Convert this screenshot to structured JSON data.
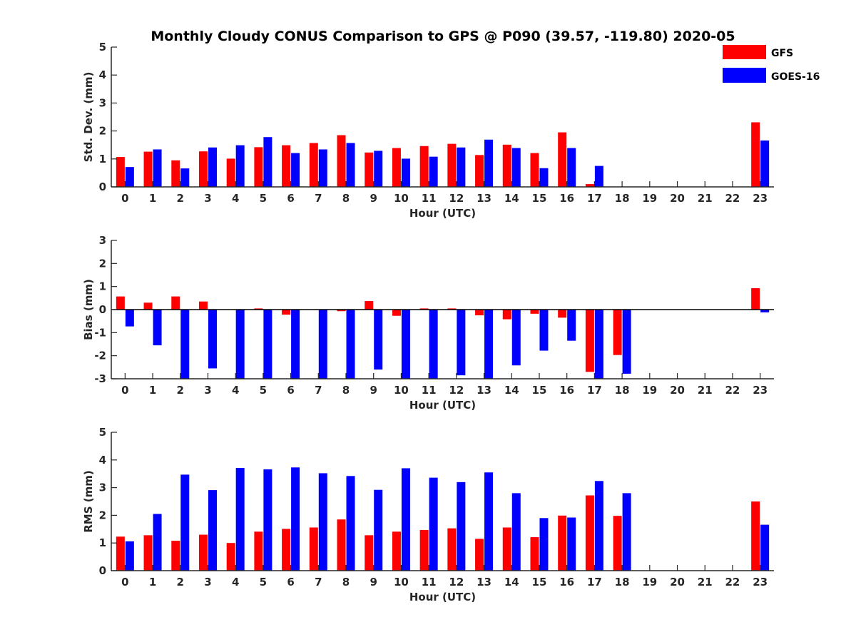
{
  "title": "Monthly Cloudy CONUS Comparison to GPS @ P090 (39.57, -119.80) 2020-05",
  "colors": {
    "gfs": "#ff0000",
    "goes": "#0000ff",
    "axis": "#262626"
  },
  "legend": [
    {
      "name": "GFS",
      "color": "#ff0000"
    },
    {
      "name": "GOES-16",
      "color": "#0000ff"
    }
  ],
  "chart_data": [
    {
      "type": "bar",
      "title": "Monthly Cloudy CONUS Comparison to GPS @ P090 (39.57, -119.80) 2020-05",
      "xlabel": "Hour (UTC)",
      "ylabel": "Std. Dev. (mm)",
      "ylim": [
        0,
        5
      ],
      "yticks": [
        0,
        1,
        2,
        3,
        4,
        5
      ],
      "categories": [
        "0",
        "1",
        "2",
        "3",
        "4",
        "5",
        "6",
        "7",
        "8",
        "9",
        "10",
        "11",
        "12",
        "13",
        "14",
        "15",
        "16",
        "17",
        "18",
        "19",
        "20",
        "21",
        "22",
        "23"
      ],
      "series": [
        {
          "name": "GFS",
          "values": [
            1.07,
            1.26,
            0.95,
            1.27,
            1.01,
            1.42,
            1.49,
            1.57,
            1.85,
            1.23,
            1.39,
            1.46,
            1.54,
            1.14,
            1.51,
            1.21,
            1.95,
            0.1,
            null,
            null,
            null,
            null,
            null,
            2.31
          ]
        },
        {
          "name": "GOES-16",
          "values": [
            0.71,
            1.34,
            0.66,
            1.41,
            1.49,
            1.78,
            1.21,
            1.34,
            1.57,
            1.29,
            1.01,
            1.08,
            1.41,
            1.69,
            1.39,
            0.67,
            1.39,
            0.75,
            null,
            null,
            null,
            null,
            null,
            1.66
          ]
        }
      ]
    },
    {
      "type": "bar",
      "xlabel": "Hour (UTC)",
      "ylabel": "Bias (mm)",
      "ylim": [
        -3,
        3
      ],
      "yticks": [
        -3,
        -2,
        -1,
        0,
        1,
        2,
        3
      ],
      "categories": [
        "0",
        "1",
        "2",
        "3",
        "4",
        "5",
        "6",
        "7",
        "8",
        "9",
        "10",
        "11",
        "12",
        "13",
        "14",
        "15",
        "16",
        "17",
        "18",
        "19",
        "20",
        "21",
        "22",
        "23"
      ],
      "series": [
        {
          "name": "GFS",
          "values": [
            0.57,
            0.3,
            0.57,
            0.35,
            0.0,
            0.05,
            -0.22,
            0.0,
            -0.07,
            0.37,
            -0.27,
            0.05,
            0.05,
            -0.25,
            -0.42,
            -0.18,
            -0.35,
            -2.7,
            -1.97,
            null,
            null,
            null,
            null,
            0.93
          ]
        },
        {
          "name": "GOES-16",
          "values": [
            -0.73,
            -1.55,
            -3.0,
            -2.55,
            -3.0,
            -3.0,
            -3.0,
            -3.0,
            -3.0,
            -2.6,
            -3.0,
            -3.0,
            -2.85,
            -3.0,
            -2.42,
            -1.78,
            -1.35,
            -3.0,
            -2.78,
            null,
            null,
            null,
            null,
            -0.12
          ]
        }
      ]
    },
    {
      "type": "bar",
      "xlabel": "Hour (UTC)",
      "ylabel": "RMS (mm)",
      "ylim": [
        0,
        5
      ],
      "yticks": [
        0,
        1,
        2,
        3,
        4,
        5
      ],
      "categories": [
        "0",
        "1",
        "2",
        "3",
        "4",
        "5",
        "6",
        "7",
        "8",
        "9",
        "10",
        "11",
        "12",
        "13",
        "14",
        "15",
        "16",
        "17",
        "18",
        "19",
        "20",
        "21",
        "22",
        "23"
      ],
      "series": [
        {
          "name": "GFS",
          "values": [
            1.23,
            1.28,
            1.08,
            1.3,
            1.0,
            1.41,
            1.51,
            1.56,
            1.85,
            1.28,
            1.41,
            1.47,
            1.53,
            1.15,
            1.56,
            1.21,
            1.99,
            2.72,
            1.98,
            null,
            null,
            null,
            null,
            2.5
          ]
        },
        {
          "name": "GOES-16",
          "values": [
            1.06,
            2.05,
            3.47,
            2.91,
            3.71,
            3.66,
            3.73,
            3.52,
            3.42,
            2.92,
            3.7,
            3.36,
            3.2,
            3.55,
            2.8,
            1.9,
            1.92,
            3.24,
            2.8,
            null,
            null,
            null,
            null,
            1.66
          ]
        }
      ]
    }
  ]
}
